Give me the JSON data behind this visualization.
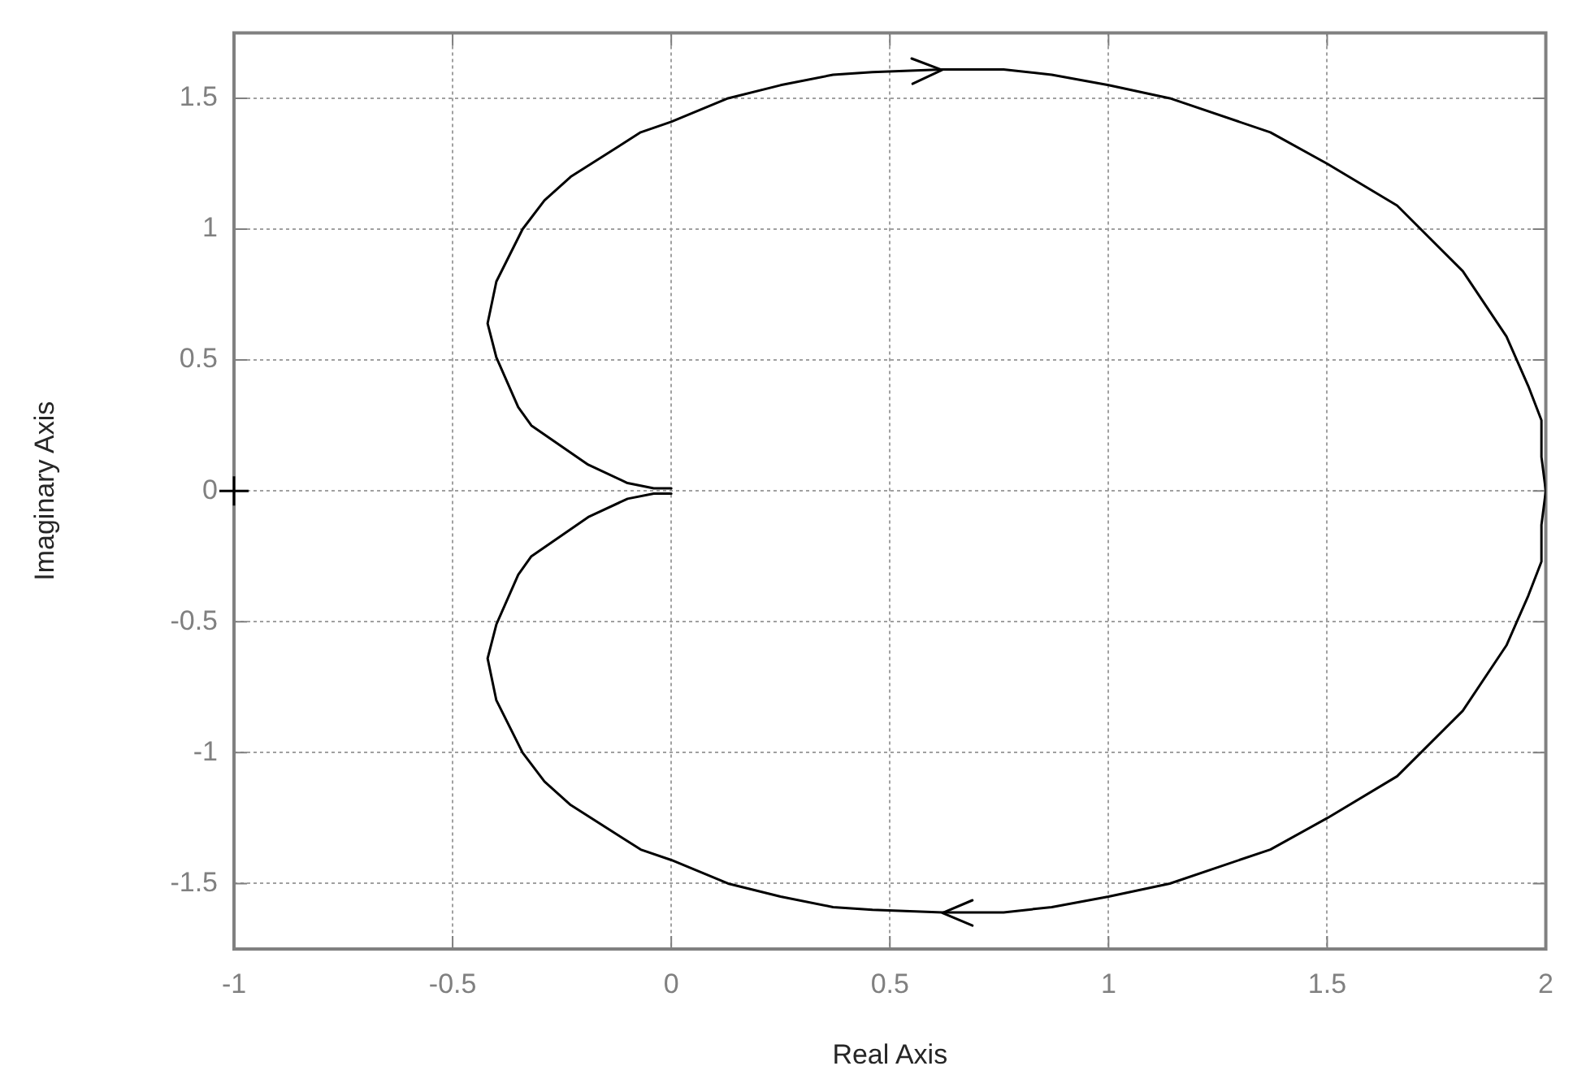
{
  "chart_data": {
    "type": "line",
    "xlabel": "Real Axis",
    "ylabel": "Imaginary Axis",
    "xlim": [
      -1,
      2
    ],
    "ylim": [
      -1.75,
      1.75
    ],
    "xticks": [
      -1,
      -0.5,
      0,
      0.5,
      1,
      1.5,
      2
    ],
    "yticks": [
      -1.5,
      -1,
      -0.5,
      0,
      0.5,
      1,
      1.5
    ],
    "grid": true,
    "legend": false,
    "series": [
      {
        "type": "line",
        "color": "#000000",
        "marker": "none",
        "x": [
          0,
          -0.04,
          -0.1,
          -0.19,
          -0.32,
          -0.35,
          -0.4,
          -0.42,
          -0.4,
          -0.34,
          -0.29,
          -0.23,
          -0.07,
          0,
          0.13,
          0.25,
          0.37,
          0.46,
          0.62,
          0.76,
          0.87,
          1.0,
          1.14,
          1.37,
          1.5,
          1.66,
          1.81,
          1.91,
          1.96,
          1.99,
          1.99,
          2,
          1.99,
          1.99,
          1.96,
          1.91,
          1.81,
          1.66,
          1.5,
          1.37,
          1.14,
          1.0,
          0.87,
          0.76,
          0.62,
          0.46,
          0.37,
          0.25,
          0.13,
          0,
          -0.07,
          -0.23,
          -0.29,
          -0.34,
          -0.4,
          -0.42,
          -0.4,
          -0.35,
          -0.32,
          -0.19,
          -0.1,
          -0.04,
          0
        ],
        "values": [
          0.01,
          0.01,
          0.03,
          0.1,
          0.25,
          0.32,
          0.51,
          0.64,
          0.8,
          1.0,
          1.11,
          1.2,
          1.37,
          1.41,
          1.5,
          1.55,
          1.59,
          1.6,
          1.61,
          1.61,
          1.59,
          1.55,
          1.5,
          1.37,
          1.25,
          1.09,
          0.84,
          0.59,
          0.4,
          0.27,
          0.13,
          0,
          -0.13,
          -0.27,
          -0.4,
          -0.59,
          -0.84,
          -1.09,
          -1.25,
          -1.37,
          -1.5,
          -1.55,
          -1.59,
          -1.61,
          -1.61,
          -1.6,
          -1.59,
          -1.55,
          -1.5,
          -1.41,
          -1.37,
          -1.2,
          -1.11,
          -1.0,
          -0.8,
          -0.64,
          -0.51,
          -0.32,
          -0.25,
          -0.1,
          -0.03,
          -0.01,
          -0.01
        ]
      },
      {
        "type": "scatter",
        "color": "#000000",
        "marker": "cross",
        "x": [
          -1
        ],
        "values": [
          0
        ]
      }
    ]
  }
}
